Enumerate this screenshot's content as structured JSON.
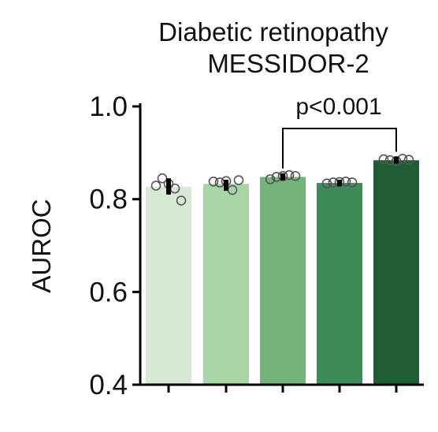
{
  "chart_data": {
    "type": "bar",
    "title_line1": "Diabetic retinopathy",
    "title_line2": "MESSIDOR-2",
    "xlabel": "",
    "ylabel": "AUROC",
    "ylim": [
      0.4,
      1.0
    ],
    "yticks": [
      0.4,
      0.6,
      0.8,
      1.0
    ],
    "ytick_labels": [
      "0.4",
      "0.6",
      "0.8",
      "1.0"
    ],
    "grid": false,
    "categories": [
      "",
      "",
      "",
      "",
      ""
    ],
    "values": [
      0.827,
      0.833,
      0.848,
      0.835,
      0.884
    ],
    "errors": [
      [
        0.81,
        0.845
      ],
      [
        0.818,
        0.842
      ],
      [
        0.84,
        0.856
      ],
      [
        0.828,
        0.842
      ],
      [
        0.877,
        0.892
      ]
    ],
    "colors": [
      "#d6ead4",
      "#a8d5a4",
      "#74b47a",
      "#3e8a58",
      "#1f5e34"
    ],
    "points": [
      [
        0.829,
        0.845,
        0.833,
        0.823,
        0.797
      ],
      [
        0.838,
        0.836,
        0.839,
        0.82,
        0.841
      ],
      [
        0.843,
        0.848,
        0.85,
        0.852,
        0.85
      ],
      [
        0.834,
        0.836,
        0.837,
        0.838,
        0.836
      ],
      [
        0.886,
        0.884,
        0.882,
        0.887,
        0.885
      ]
    ],
    "annotation": {
      "text": "p<0.001",
      "from_bar": 2,
      "to_bar": 4
    }
  }
}
